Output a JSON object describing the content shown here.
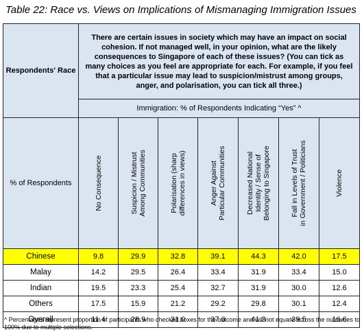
{
  "caption": "Table 22: Race vs. Views on Implications of Mismanaging Immigration Issues",
  "header": {
    "respondents_race": "Respondents' Race",
    "question": "There are certain issues in society which may have an impact on social cohesion. If not managed well, in your opinion, what are the likely consequences to Singapore of each of these issues? (You can tick as many choices as you feel are appropriate for each. For example, if you feel that a particular issue may lead to suspicion/mistrust among groups, anger, and polarisation, you can tick all three.)",
    "immigration": "Immigration: % of Respondents Indicating “Yes” ^",
    "pct_respondents": "% of Respondents",
    "columns": [
      [
        "No Consequence"
      ],
      [
        "Suspicion / Mistrust",
        "Among Communities"
      ],
      [
        "Polarisation (sharp",
        "differences in views)"
      ],
      [
        "Anger Against",
        "Particular Communities"
      ],
      [
        "Decreased National",
        "Identity / Sense of",
        "Belonging to Singapore"
      ],
      [
        "Fall in Levels of Trust",
        "in Government / Politicians"
      ],
      [
        "Violence"
      ]
    ]
  },
  "rows": [
    {
      "label": "Chinese",
      "values": [
        "9.8",
        "29.9",
        "32.8",
        "39.1",
        "44.3",
        "42.0",
        "17.5"
      ],
      "highlight": true
    },
    {
      "label": "Malay",
      "values": [
        "14.2",
        "29.5",
        "26.4",
        "33.4",
        "31.9",
        "33.4",
        "15.0"
      ],
      "highlight": false
    },
    {
      "label": "Indian",
      "values": [
        "19.5",
        "23.3",
        "25.4",
        "32.7",
        "31.9",
        "30.0",
        "12.6"
      ],
      "highlight": false
    },
    {
      "label": "Others",
      "values": [
        "17.5",
        "15.9",
        "21.2",
        "29.2",
        "29.8",
        "30.1",
        "12.4"
      ],
      "highlight": false
    },
    {
      "label": "Overall",
      "values": [
        "11.4",
        "28.9",
        "31.0",
        "37.6",
        "41.3",
        "39.5",
        "16.6"
      ],
      "highlight": false
    }
  ],
  "footnote": "^ Percentages represent proportion of participants who checked boxes for the outcome and will not equate across the outcomes to 100% due to multiple selections."
}
